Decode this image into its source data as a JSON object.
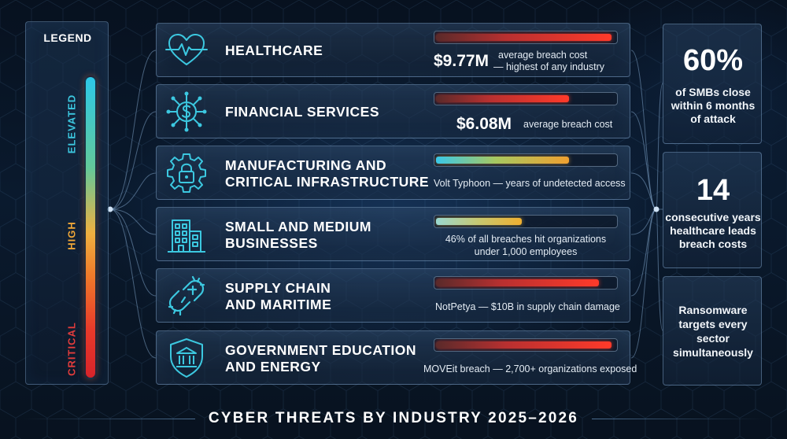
{
  "legend": {
    "title": "LEGEND",
    "levels": {
      "elevated": "ELEVATED",
      "high": "HIGH",
      "critical": "CRITICAL"
    },
    "colors": {
      "elevated": "#3cc8e0",
      "high": "#f0a838",
      "critical": "#e23c3c"
    }
  },
  "industries": [
    {
      "icon": "heart-pulse-icon",
      "title_lines": [
        "HEALTHCARE"
      ],
      "threat_level": 0.98,
      "stat_value": "$9.77M",
      "stat_lines": [
        "average breach cost",
        "— highest of any industry"
      ]
    },
    {
      "icon": "dollar-circuit-icon",
      "title_lines": [
        "FINANCIAL SERVICES"
      ],
      "threat_level": 0.74,
      "stat_value": "$6.08M",
      "stat_lines": [
        "average breach cost"
      ]
    },
    {
      "icon": "gear-lock-icon",
      "title_lines": [
        "MANUFACTURING AND",
        "CRITICAL INFRASTRUCTURE"
      ],
      "threat_level": 0.74,
      "stat_lines": [
        "Volt Typhoon — years of undetected access"
      ]
    },
    {
      "icon": "office-building-icon",
      "title_lines": [
        "SMALL AND MEDIUM",
        "BUSINESSES"
      ],
      "threat_level": 0.48,
      "stat_lines": [
        "46% of all breaches hit organizations",
        "under 1,000 employees"
      ]
    },
    {
      "icon": "broken-chain-icon",
      "title_lines": [
        "SUPPLY CHAIN",
        "AND MARITIME"
      ],
      "threat_level": 0.91,
      "stat_lines": [
        "NotPetya — $10B in supply chain damage"
      ]
    },
    {
      "icon": "government-shield-icon",
      "title_lines": [
        "GOVERNMENT EDUCATION",
        "AND ENERGY"
      ],
      "threat_level": 0.98,
      "stat_lines": [
        "MOVEit breach — 2,700+ organizations exposed"
      ]
    }
  ],
  "side_stats": [
    {
      "value": "60%",
      "lines": [
        "of SMBs close",
        "within 6 months",
        "of attack"
      ]
    },
    {
      "value": "14",
      "lines": [
        "consecutive years",
        "healthcare leads",
        "breach costs"
      ]
    },
    {
      "value": "",
      "lines": [
        "Ransomware",
        "targets every",
        "sector",
        "simultaneously"
      ]
    }
  ],
  "footer": {
    "title": "CYBER THREATS BY INDUSTRY 2025–2026"
  }
}
